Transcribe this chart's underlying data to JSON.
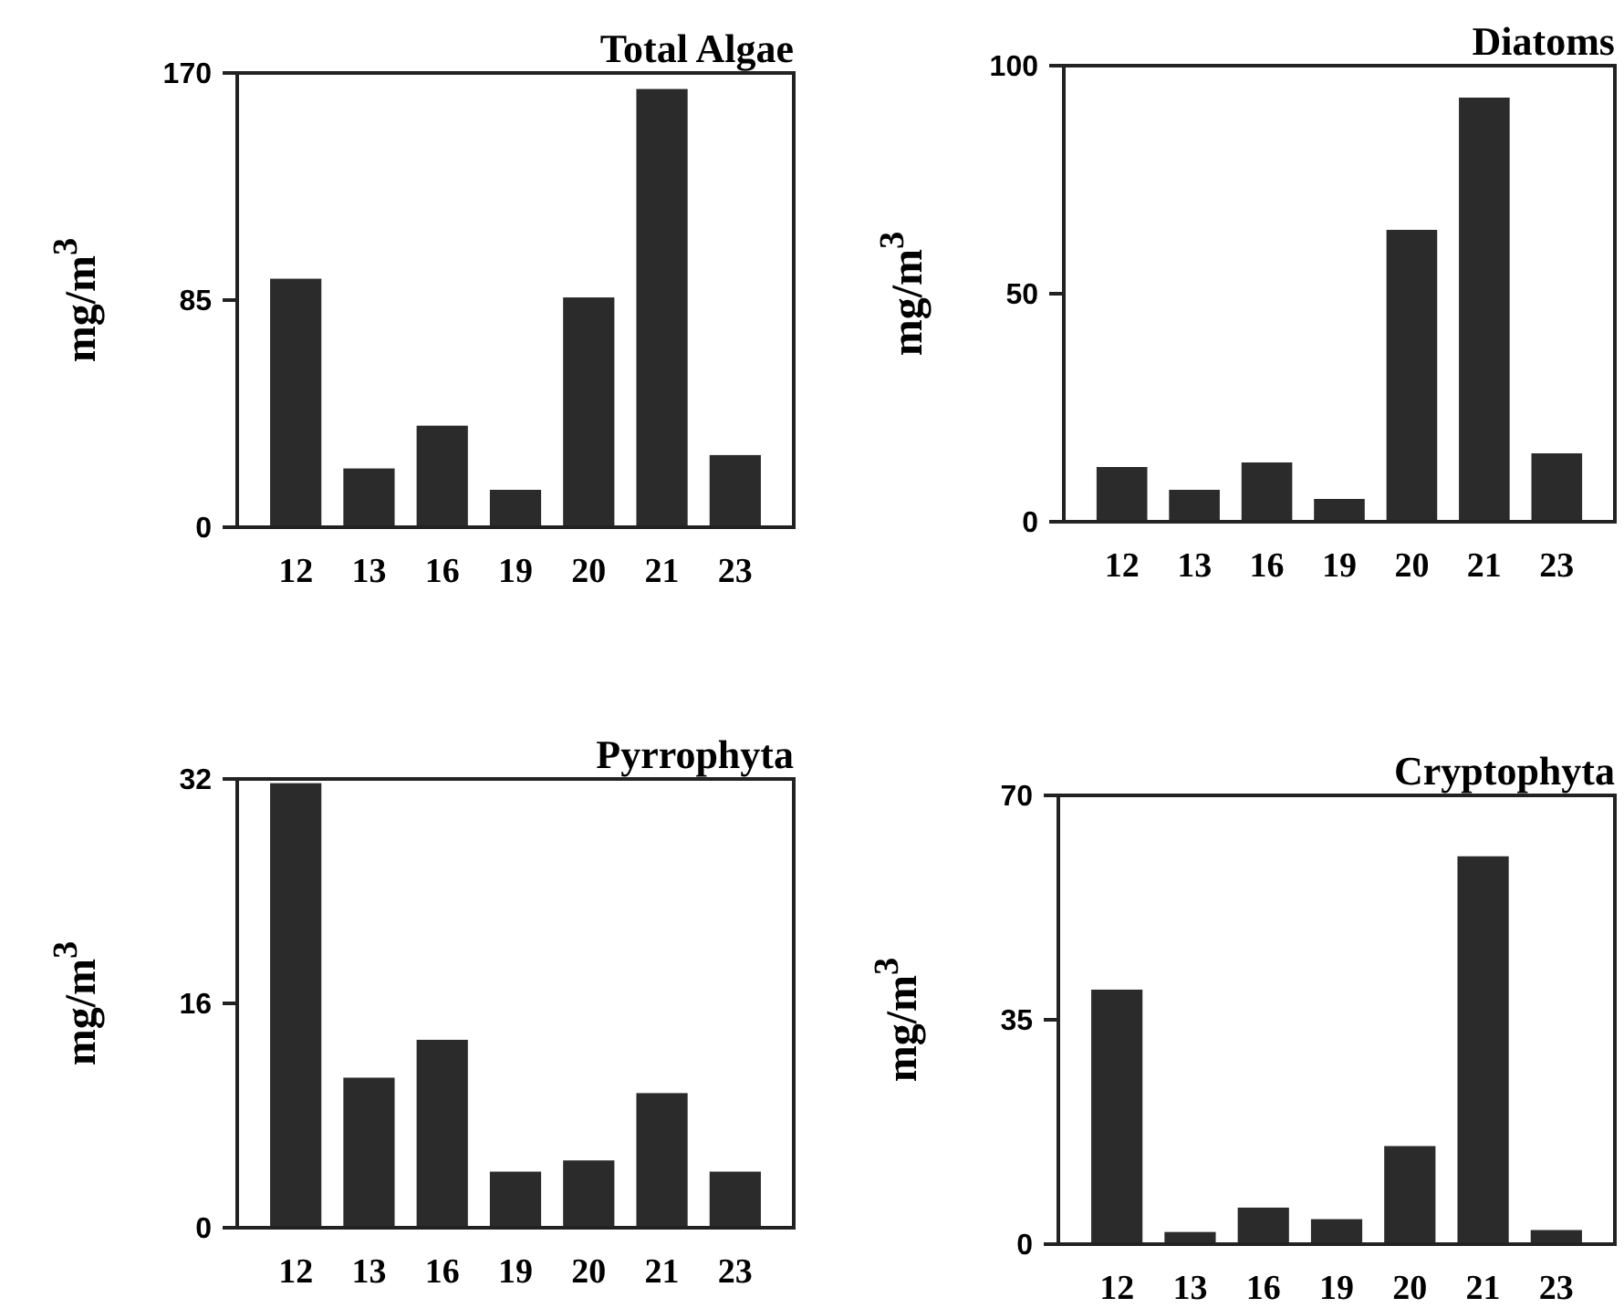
{
  "chart_data": [
    {
      "type": "bar",
      "title": "Total Algae",
      "ylabel": "mg/m$^{3}$",
      "categories": [
        "12",
        "13",
        "16",
        "19",
        "20",
        "21",
        "23"
      ],
      "values": [
        93,
        22,
        38,
        14,
        86,
        164,
        27
      ],
      "color": "#2b2b2b",
      "ylim": [
        0,
        170
      ],
      "yticks": [
        0,
        85,
        170
      ],
      "grid": false
    },
    {
      "type": "bar",
      "title": "Diatoms",
      "ylabel": "mg/m$^{3}$",
      "categories": [
        "12",
        "13",
        "16",
        "19",
        "20",
        "21",
        "23"
      ],
      "values": [
        12,
        7,
        13,
        5,
        64,
        93,
        15
      ],
      "color": "#2b2b2b",
      "ylim": [
        0,
        100
      ],
      "yticks": [
        0,
        50,
        100
      ],
      "grid": false
    },
    {
      "type": "bar",
      "title": "Pyrrophyta",
      "ylabel": "mg/m$^{3}$",
      "categories": [
        "12",
        "13",
        "16",
        "19",
        "20",
        "21",
        "23"
      ],
      "values": [
        31.7,
        10.7,
        13.4,
        4,
        4.8,
        9.6,
        4
      ],
      "color": "#2b2b2b",
      "ylim": [
        0,
        32
      ],
      "yticks": [
        0,
        16,
        32
      ],
      "grid": false
    },
    {
      "type": "bar",
      "title": "Cryptophyta",
      "ylabel": "mg/m$^{3}$",
      "categories": [
        "12",
        "13",
        "16",
        "19",
        "20",
        "21",
        "23"
      ],
      "values": [
        39.7,
        1.9,
        5.7,
        3.9,
        15.3,
        60.5,
        2.2
      ],
      "color": "#2b2b2b",
      "ylim": [
        0,
        70
      ],
      "yticks": [
        0,
        35,
        70
      ],
      "grid": false
    }
  ]
}
